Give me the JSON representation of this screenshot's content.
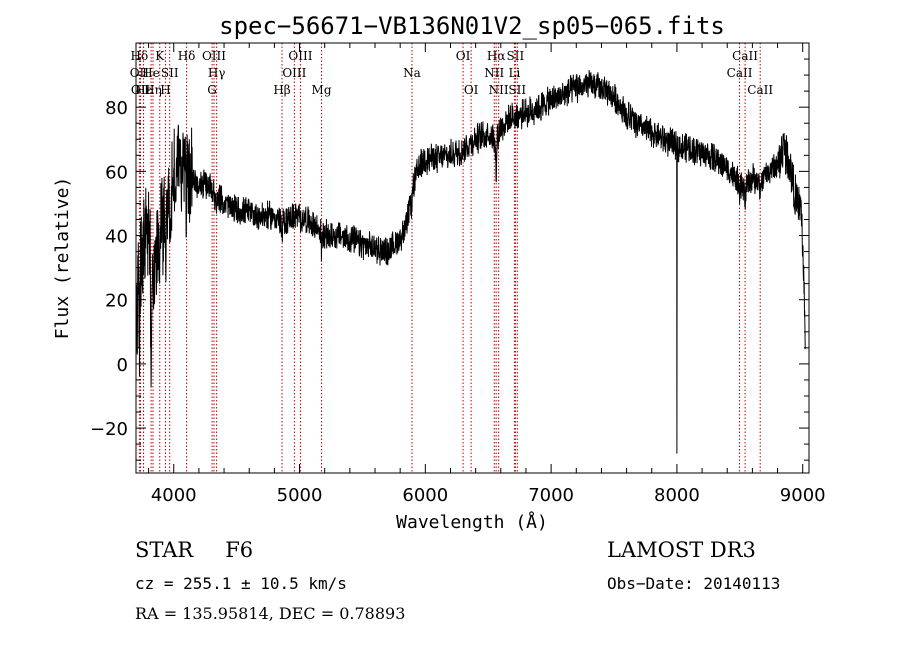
{
  "chart_data": {
    "type": "line",
    "title": "spec−56671−VB136N01V2_sp05−065.fits",
    "xlabel": "Wavelength (Å)",
    "ylabel": "Flux (relative)",
    "xlim": [
      3700,
      9050
    ],
    "ylim": [
      -34,
      100
    ],
    "xticks": [
      4000,
      5000,
      6000,
      7000,
      8000,
      9000
    ],
    "xtick_labels": [
      "4000",
      "5000",
      "6000",
      "7000",
      "8000",
      "9000"
    ],
    "yticks": [
      -20,
      0,
      20,
      40,
      60,
      80
    ],
    "ytick_labels": [
      "−20",
      "0",
      "20",
      "40",
      "60",
      "80"
    ],
    "line_color": "#000000",
    "marker_color": "#c00000",
    "spectrum_knots": [
      [
        3700,
        5
      ],
      [
        3720,
        30
      ],
      [
        3760,
        38
      ],
      [
        3800,
        40
      ],
      [
        3840,
        30
      ],
      [
        3870,
        38
      ],
      [
        3900,
        42
      ],
      [
        3950,
        50
      ],
      [
        3990,
        55
      ],
      [
        4030,
        63
      ],
      [
        4070,
        62
      ],
      [
        4102,
        60
      ],
      [
        4150,
        57
      ],
      [
        4200,
        56
      ],
      [
        4300,
        55
      ],
      [
        4340,
        52
      ],
      [
        4400,
        50
      ],
      [
        4500,
        48
      ],
      [
        4600,
        47
      ],
      [
        4700,
        46
      ],
      [
        4800,
        46
      ],
      [
        4861,
        44
      ],
      [
        4950,
        46
      ],
      [
        5050,
        45
      ],
      [
        5150,
        42
      ],
      [
        5200,
        40
      ],
      [
        5300,
        40
      ],
      [
        5400,
        39
      ],
      [
        5500,
        37
      ],
      [
        5600,
        36
      ],
      [
        5700,
        35
      ],
      [
        5800,
        39
      ],
      [
        5850,
        43
      ],
      [
        5880,
        50
      ],
      [
        5920,
        58
      ],
      [
        5960,
        62
      ],
      [
        6000,
        64
      ],
      [
        6100,
        64
      ],
      [
        6200,
        65
      ],
      [
        6300,
        67
      ],
      [
        6400,
        70
      ],
      [
        6500,
        72
      ],
      [
        6563,
        70
      ],
      [
        6600,
        74
      ],
      [
        6700,
        77
      ],
      [
        6800,
        78
      ],
      [
        6900,
        80
      ],
      [
        7000,
        82
      ],
      [
        7100,
        84
      ],
      [
        7200,
        86
      ],
      [
        7300,
        87
      ],
      [
        7400,
        86
      ],
      [
        7500,
        83
      ],
      [
        7600,
        78
      ],
      [
        7700,
        74
      ],
      [
        7800,
        72
      ],
      [
        7900,
        70
      ],
      [
        8000,
        68
      ],
      [
        8100,
        67
      ],
      [
        8200,
        66
      ],
      [
        8300,
        64
      ],
      [
        8400,
        61
      ],
      [
        8498,
        56
      ],
      [
        8542,
        55
      ],
      [
        8600,
        58
      ],
      [
        8662,
        56
      ],
      [
        8700,
        59
      ],
      [
        8800,
        62
      ],
      [
        8850,
        68
      ],
      [
        8900,
        62
      ],
      [
        8950,
        50
      ],
      [
        8990,
        48
      ],
      [
        9020,
        10
      ]
    ],
    "spectrum_features": [
      {
        "x": 3728,
        "depth": -28
      },
      {
        "x": 3820,
        "depth": -38
      },
      {
        "x": 3889,
        "depth": -12
      },
      {
        "x": 3934,
        "depth": -20
      },
      {
        "x": 3970,
        "depth": -14
      },
      {
        "x": 4102,
        "depth": -8
      },
      {
        "x": 4340,
        "depth": -6
      },
      {
        "x": 4861,
        "depth": -6
      },
      {
        "x": 5175,
        "depth": -6
      },
      {
        "x": 5890,
        "depth": -4
      },
      {
        "x": 6563,
        "depth": -14
      },
      {
        "x": 7605,
        "depth": -4
      },
      {
        "x": 8000,
        "depth": -97
      },
      {
        "x": 8498,
        "depth": -6
      },
      {
        "x": 8542,
        "depth": -6
      },
      {
        "x": 8662,
        "depth": -5
      }
    ],
    "noise": [
      {
        "from": 3700,
        "to": 4150,
        "amplitude": 14
      },
      {
        "from": 4150,
        "to": 5900,
        "amplitude": 4
      },
      {
        "from": 5900,
        "to": 8800,
        "amplitude": 4
      },
      {
        "from": 8800,
        "to": 9050,
        "amplitude": 6
      }
    ],
    "line_markers": [
      {
        "label": "Hδ",
        "x": 3727,
        "row": 0
      },
      {
        "label": "OII",
        "x": 3727,
        "row": 1
      },
      {
        "label": "OII",
        "x": 3736,
        "row": 2
      },
      {
        "label": "Hε",
        "x": 3760,
        "row": 2
      },
      {
        "label": "He",
        "x": 3820,
        "row": 1
      },
      {
        "label": "Hη",
        "x": 3835,
        "row": 2
      },
      {
        "label": "K",
        "x": 3889,
        "row": 0
      },
      {
        "label": "H",
        "x": 3934,
        "row": 2
      },
      {
        "label": "SII",
        "x": 3968,
        "row": 1
      },
      {
        "label": "Hδ",
        "x": 4102,
        "row": 0
      },
      {
        "label": "OIII",
        "x": 4320,
        "row": 0
      },
      {
        "label": "Hγ",
        "x": 4341,
        "row": 1
      },
      {
        "label": "G",
        "x": 4305,
        "row": 2
      },
      {
        "label": "Hβ",
        "x": 4861,
        "row": 2
      },
      {
        "label": "OIII",
        "x": 4959,
        "row": 1
      },
      {
        "label": "OIII",
        "x": 5007,
        "row": 0
      },
      {
        "label": "Mg",
        "x": 5175,
        "row": 2
      },
      {
        "label": "Na",
        "x": 5894,
        "row": 1
      },
      {
        "label": "OI",
        "x": 6300,
        "row": 0
      },
      {
        "label": "OI",
        "x": 6364,
        "row": 2
      },
      {
        "label": "Hα",
        "x": 6563,
        "row": 0
      },
      {
        "label": "NII",
        "x": 6548,
        "row": 1
      },
      {
        "label": "NII",
        "x": 6583,
        "row": 2
      },
      {
        "label": "SII",
        "x": 6716,
        "row": 0
      },
      {
        "label": "Li",
        "x": 6708,
        "row": 1
      },
      {
        "label": "SII",
        "x": 6731,
        "row": 2
      },
      {
        "label": "CaII",
        "x": 8498,
        "row": 1
      },
      {
        "label": "CaII",
        "x": 8542,
        "row": 0
      },
      {
        "label": "CaII",
        "x": 8662,
        "row": 2
      }
    ]
  },
  "info": {
    "object_class": "STAR",
    "subclass": "F6",
    "survey": "LAMOST DR3",
    "cz_text": "cz = 255.1 ± 10.5 km/s",
    "obs_date_text": "Obs−Date: 20140113",
    "radec_text": "RA = 135.95814, DEC =    0.78893"
  }
}
